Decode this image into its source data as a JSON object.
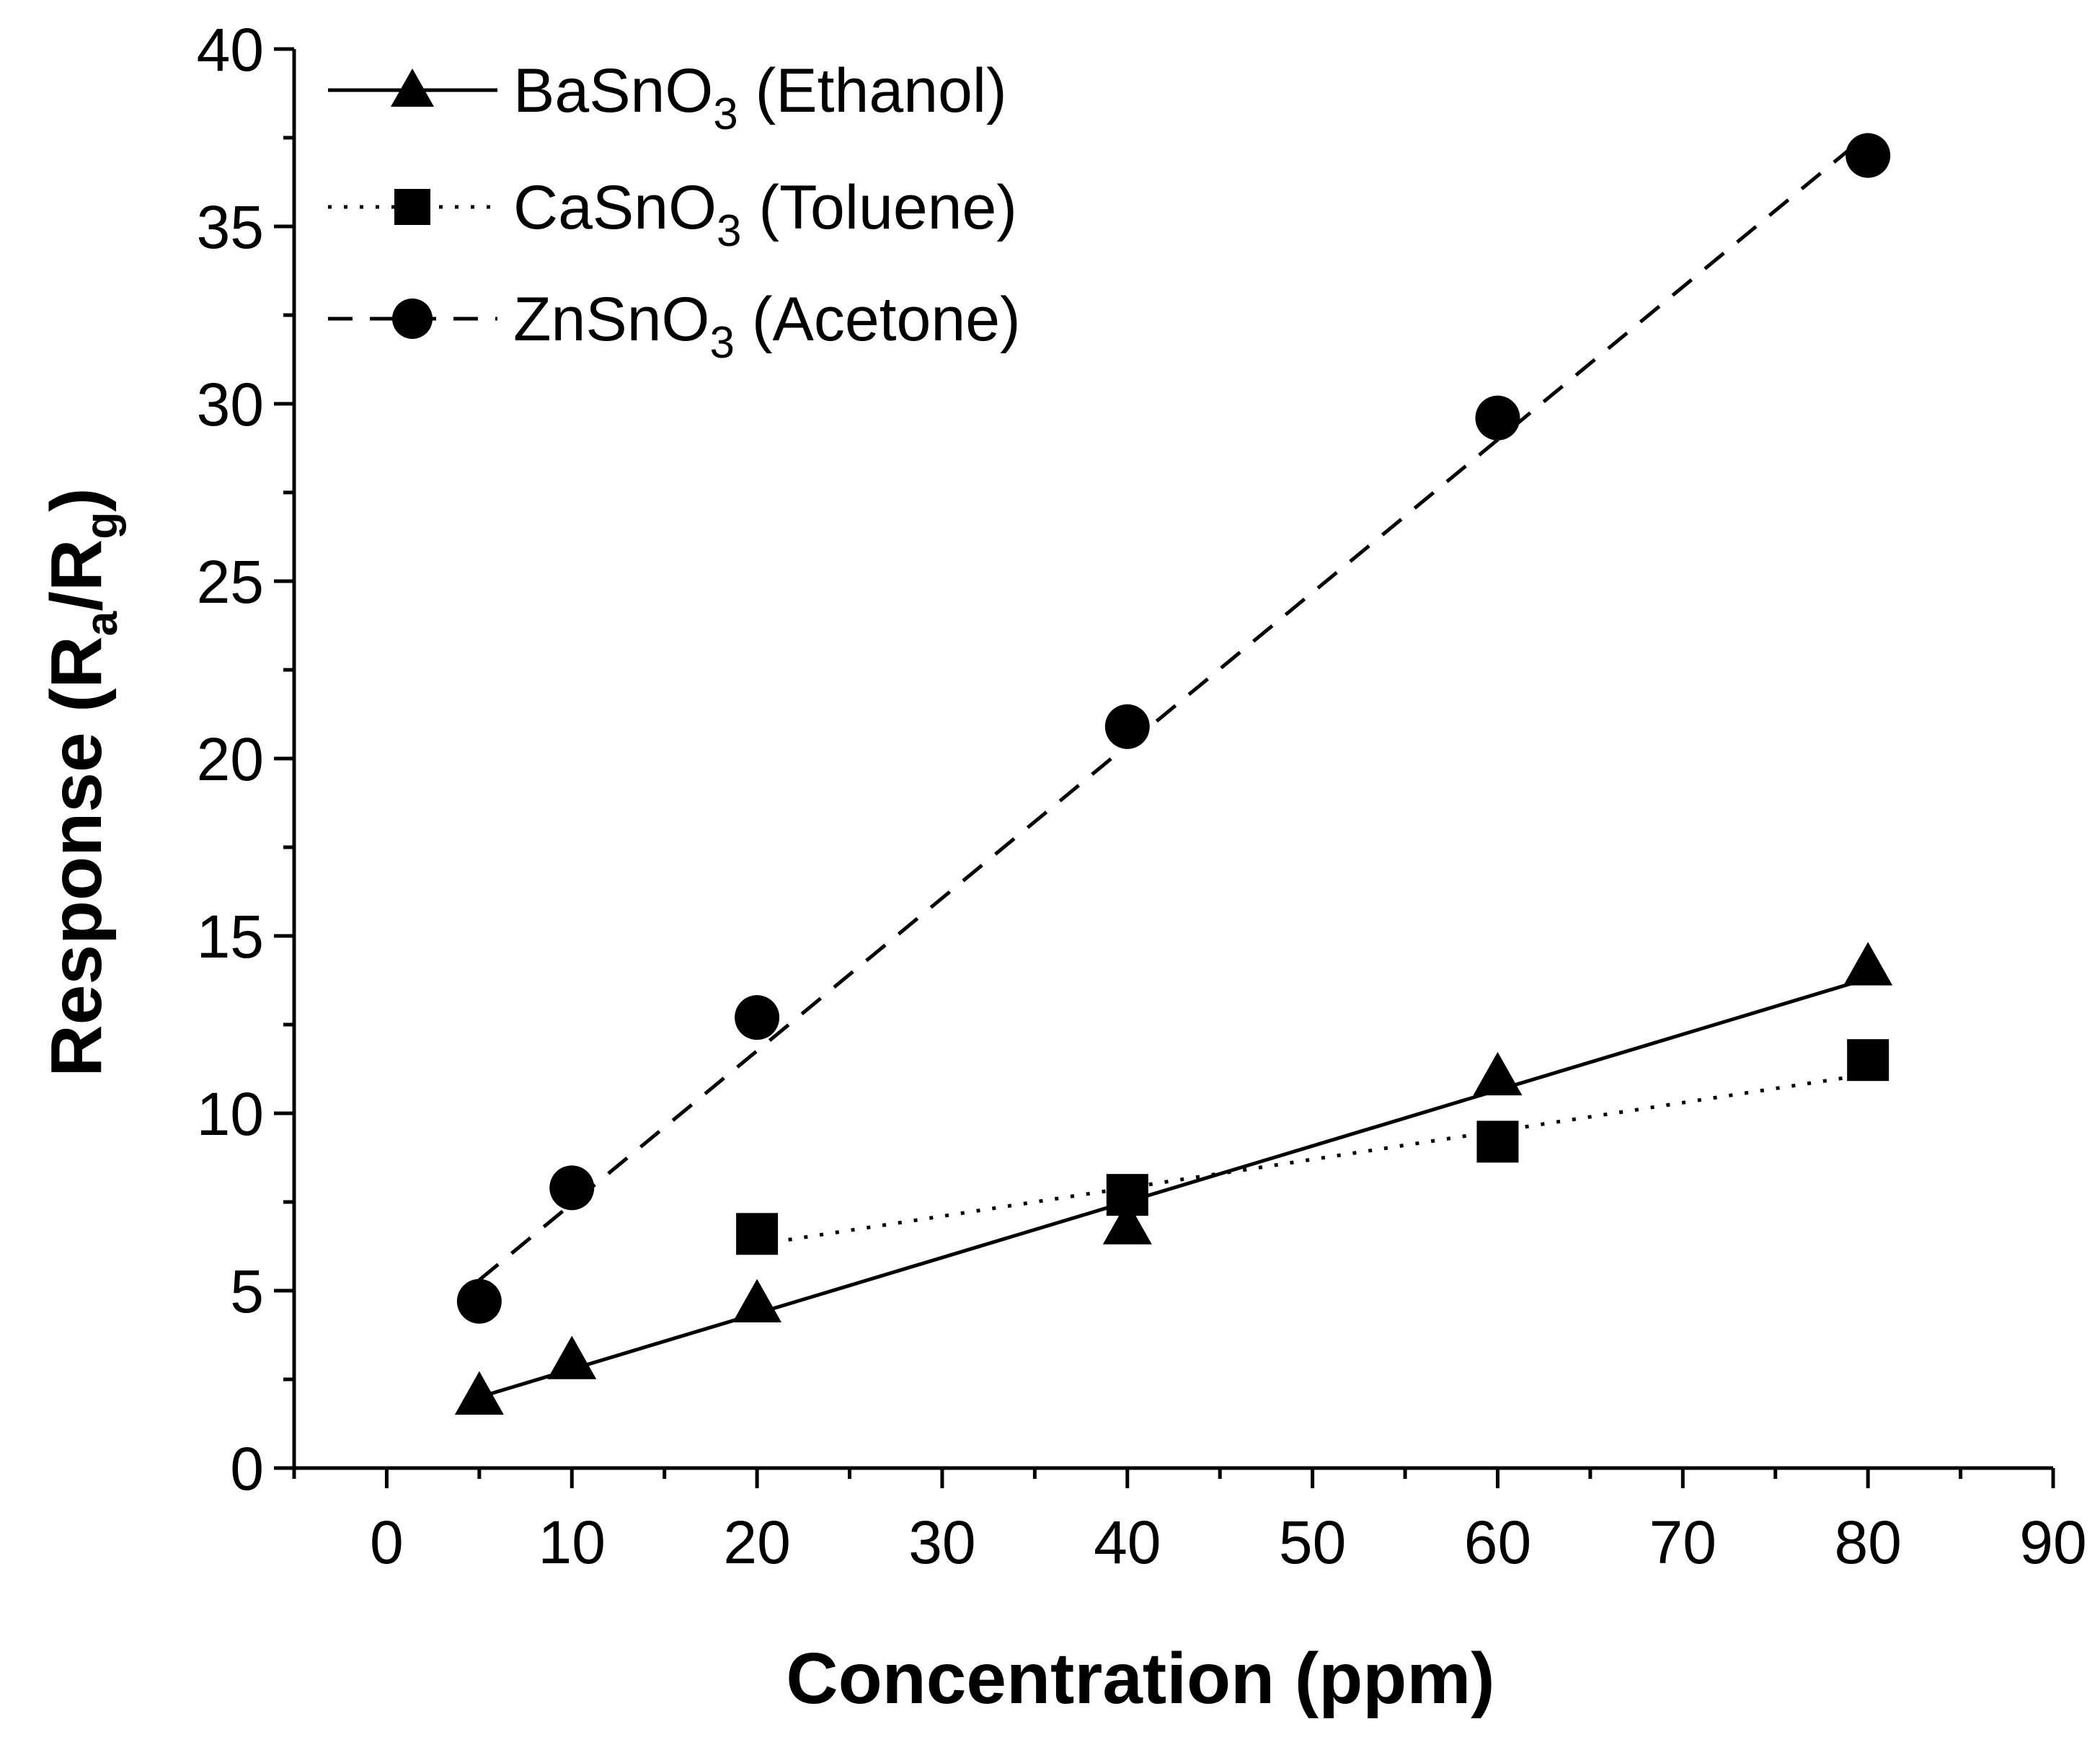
{
  "chart_data": {
    "type": "scatter",
    "title": "",
    "xlabel": "Concentration (ppm)",
    "ylabel": {
      "main": "Response (R",
      "sub_a": "a",
      "slash": "/R",
      "sub_g": "g",
      "close": ")"
    },
    "xlim": [
      -5,
      90
    ],
    "ylim": [
      0,
      40
    ],
    "x_ticks": [
      0,
      10,
      20,
      30,
      40,
      50,
      60,
      70,
      80,
      90
    ],
    "y_ticks": [
      0,
      5,
      10,
      15,
      20,
      25,
      30,
      35,
      40
    ],
    "grid": false,
    "legend_position": "top-left",
    "series": [
      {
        "name": "BaSnO3 (Ethanol)",
        "legend": {
          "pre": "BaSnO",
          "sub": "3",
          "post": " (Ethanol)"
        },
        "marker": "triangle",
        "line": "solid",
        "x": [
          5,
          10,
          20,
          40,
          60,
          80
        ],
        "y": [
          2.0,
          3.0,
          4.6,
          6.8,
          11.0,
          14.1
        ],
        "fit": [
          [
            5,
            2.0
          ],
          [
            80,
            13.8
          ]
        ]
      },
      {
        "name": "CaSnO3 (Toluene)",
        "legend": {
          "pre": "CaSnO",
          "sub": "3",
          "post": " (Toluene)"
        },
        "marker": "square",
        "line": "dotted",
        "x": [
          20,
          40,
          60,
          80
        ],
        "y": [
          6.6,
          7.7,
          9.2,
          11.5
        ],
        "fit": [
          [
            20,
            6.3
          ],
          [
            80,
            11.1
          ]
        ]
      },
      {
        "name": "ZnSnO3 (Acetone)",
        "legend": {
          "pre": "ZnSnO",
          "sub": "3",
          "post": " (Acetone)"
        },
        "marker": "circle",
        "line": "dashed",
        "x": [
          5,
          10,
          20,
          40,
          60,
          80
        ],
        "y": [
          4.7,
          7.9,
          12.7,
          20.9,
          29.6,
          37.0
        ],
        "fit": [
          [
            5,
            5.3
          ],
          [
            80,
            37.6
          ]
        ]
      }
    ]
  }
}
